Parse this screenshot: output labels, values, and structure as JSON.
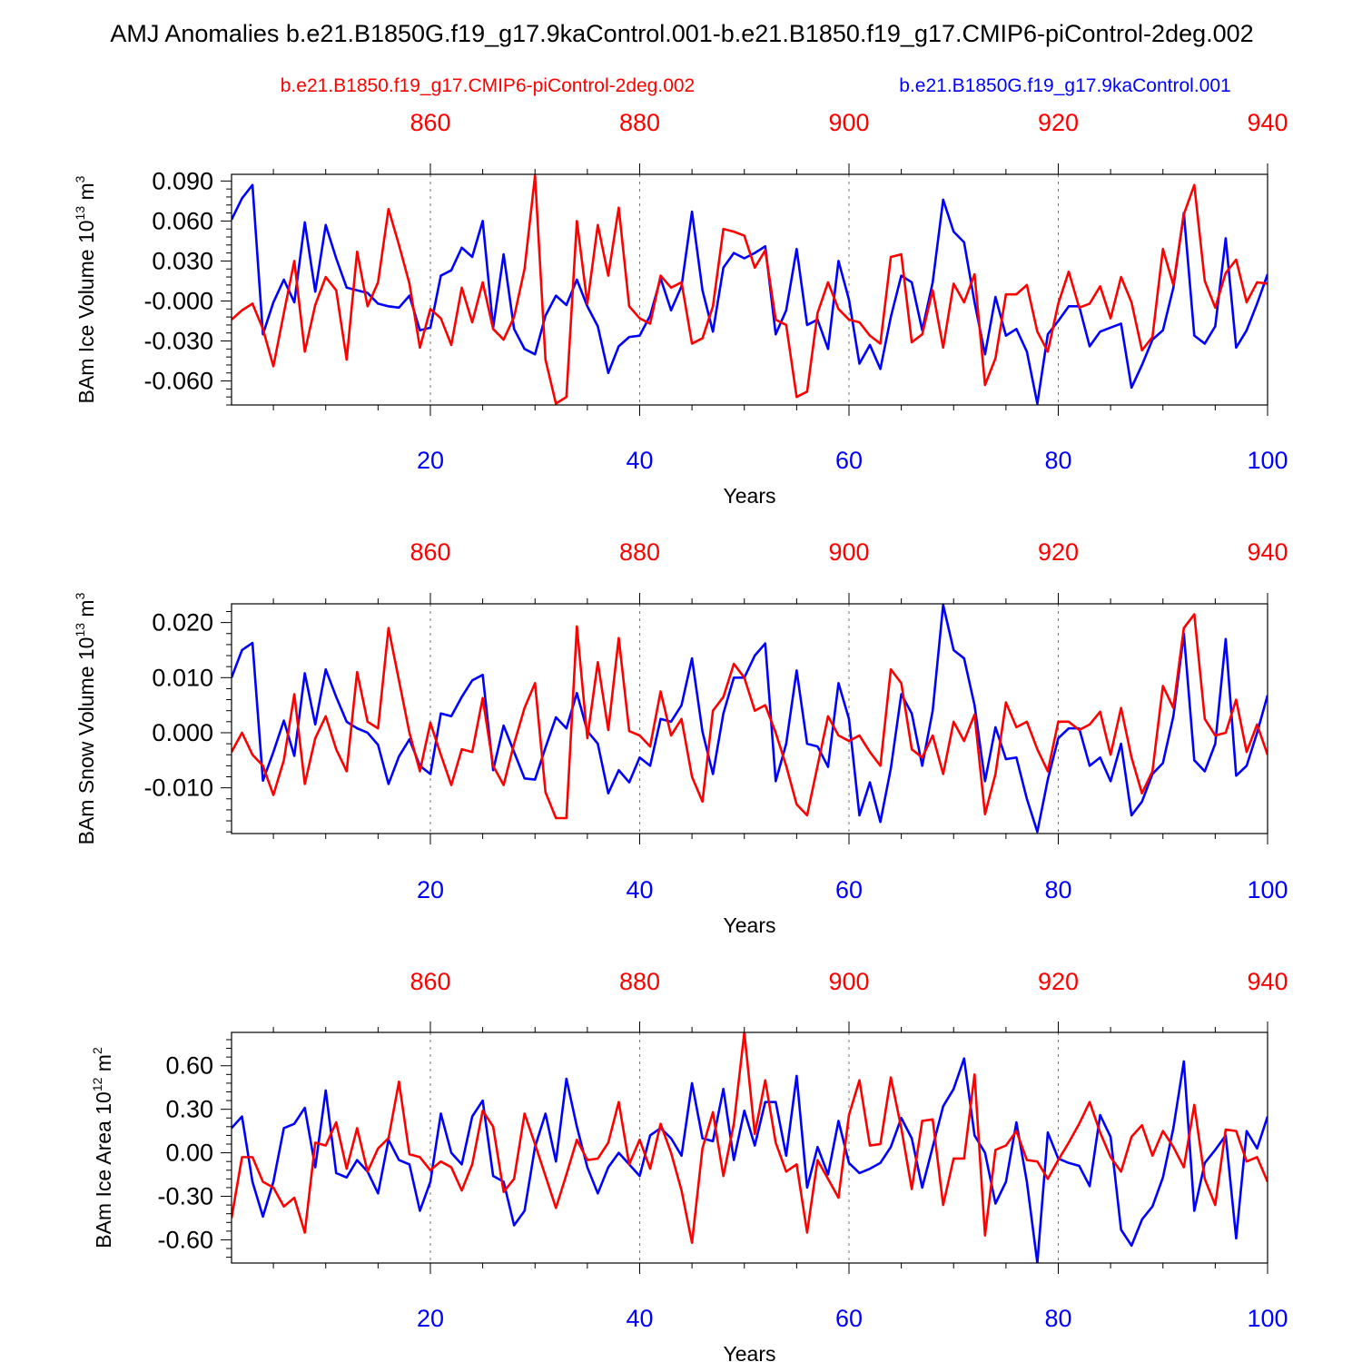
{
  "title": "AMJ Anomalies b.e21.B1850G.f19_g17.9kaControl.001-b.e21.B1850.f19_g17.CMIP6-piControl-2deg.002",
  "legend": {
    "red_label": "b.e21.B1850.f19_g17.CMIP6-piControl-2deg.002",
    "blue_label": "b.e21.B1850G.f19_g17.9kaControl.001"
  },
  "colors": {
    "red": "#ff0000",
    "blue": "#0000ff",
    "axis": "#000000",
    "grid": "#777777"
  },
  "chart_data": [
    {
      "type": "line",
      "ylabel": "BAm Ice Volume 10",
      "ylabel_exp": "13",
      "ylabel_unit": " m",
      "ylabel_unit_exp": "3",
      "xlabel": "Years",
      "xlim": [
        1,
        100
      ],
      "ylim": [
        -0.078,
        0.095
      ],
      "yticks": [
        0.09,
        0.06,
        0.03,
        0.0,
        -0.03,
        -0.06
      ],
      "ytick_labels": [
        "0.090",
        "0.060",
        "0.030",
        "-0.000",
        "-0.030",
        "-0.060"
      ],
      "xticks_bottom": [
        20,
        40,
        60,
        80,
        100
      ],
      "xtick_labels_bottom": [
        "20",
        "40",
        "60",
        "80",
        "100"
      ],
      "xticks_top": [
        20,
        40,
        60,
        80,
        100
      ],
      "xtick_labels_top": [
        "860",
        "880",
        "900",
        "920",
        "940"
      ],
      "grid_x": [
        20,
        40,
        60,
        80
      ],
      "series": [
        {
          "name": "b.e21.B1850G.f19_g17.9kaControl.001",
          "color": "blue",
          "values": [
            0.061,
            0.077,
            0.087,
            -0.025,
            -0.001,
            0.016,
            -0.001,
            0.059,
            0.007,
            0.057,
            0.032,
            0.01,
            0.008,
            0.006,
            -0.002,
            -0.004,
            -0.005,
            0.004,
            -0.022,
            -0.02,
            0.019,
            0.023,
            0.04,
            0.033,
            0.06,
            -0.02,
            0.035,
            -0.021,
            -0.036,
            -0.04,
            -0.011,
            0.004,
            -0.003,
            0.016,
            -0.004,
            -0.019,
            -0.054,
            -0.034,
            -0.027,
            -0.026,
            -0.011,
            0.017,
            -0.007,
            0.011,
            0.067,
            0.008,
            -0.023,
            0.025,
            0.036,
            0.032,
            0.036,
            0.041,
            -0.025,
            -0.007,
            0.039,
            -0.018,
            -0.014,
            -0.036,
            0.03,
            0.001,
            -0.047,
            -0.033,
            -0.051,
            -0.012,
            0.019,
            0.014,
            -0.022,
            0.014,
            0.076,
            0.052,
            0.044,
            -0.001,
            -0.04,
            0.003,
            -0.026,
            -0.021,
            -0.038,
            -0.077,
            -0.025,
            -0.015,
            -0.004,
            -0.004,
            -0.034,
            -0.023,
            -0.02,
            -0.017,
            -0.065,
            -0.048,
            -0.029,
            -0.022,
            0.01,
            0.066,
            -0.026,
            -0.032,
            -0.019,
            0.047,
            -0.035,
            -0.022,
            -0.002,
            0.02
          ]
        },
        {
          "name": "b.e21.B1850.f19_g17.CMIP6-piControl-2deg.002",
          "color": "red",
          "values": [
            -0.014,
            -0.007,
            -0.002,
            -0.021,
            -0.049,
            -0.009,
            0.03,
            -0.038,
            -0.003,
            0.018,
            0.008,
            -0.044,
            0.037,
            -0.004,
            0.014,
            0.069,
            0.042,
            0.013,
            -0.035,
            -0.006,
            -0.013,
            -0.033,
            0.01,
            -0.016,
            0.014,
            -0.021,
            -0.029,
            -0.012,
            0.024,
            0.094,
            -0.044,
            -0.077,
            -0.072,
            0.06,
            -0.002,
            0.057,
            0.019,
            0.07,
            -0.004,
            -0.013,
            -0.017,
            0.019,
            0.01,
            0.014,
            -0.032,
            -0.028,
            -0.004,
            0.054,
            0.052,
            0.049,
            0.025,
            0.038,
            -0.014,
            -0.018,
            -0.072,
            -0.068,
            -0.009,
            0.014,
            -0.006,
            -0.014,
            -0.016,
            -0.026,
            -0.032,
            0.033,
            0.035,
            -0.031,
            -0.025,
            0.008,
            -0.035,
            0.013,
            -0.001,
            0.02,
            -0.063,
            -0.043,
            0.005,
            0.005,
            0.012,
            -0.023,
            -0.038,
            -0.002,
            0.022,
            -0.005,
            -0.002,
            0.011,
            -0.013,
            0.018,
            -0.001,
            -0.037,
            -0.027,
            0.039,
            0.012,
            0.065,
            0.087,
            0.015,
            -0.005,
            0.021,
            0.031,
            -0.001,
            0.014,
            0.013
          ]
        }
      ]
    },
    {
      "type": "line",
      "ylabel": "BAm Snow Volume 10",
      "ylabel_exp": "13",
      "ylabel_unit": " m",
      "ylabel_unit_exp": "3",
      "xlabel": "Years",
      "xlim": [
        1,
        100
      ],
      "ylim": [
        -0.0183,
        0.0234
      ],
      "yticks": [
        0.02,
        0.01,
        0.0,
        -0.01
      ],
      "ytick_labels": [
        "0.020",
        "0.010",
        "0.000",
        "-0.010"
      ],
      "xticks_bottom": [
        20,
        40,
        60,
        80,
        100
      ],
      "xtick_labels_bottom": [
        "20",
        "40",
        "60",
        "80",
        "100"
      ],
      "xticks_top": [
        20,
        40,
        60,
        80,
        100
      ],
      "xtick_labels_top": [
        "860",
        "880",
        "900",
        "920",
        "940"
      ],
      "grid_x": [
        20,
        40,
        60,
        80
      ],
      "series": [
        {
          "name": "b.e21.B1850G.f19_g17.9kaControl.001",
          "color": "blue",
          "values": [
            0.01,
            0.015,
            0.0163,
            -0.0087,
            -0.0035,
            0.0022,
            -0.0042,
            0.0108,
            0.0015,
            0.0115,
            0.0065,
            0.002,
            0.0008,
            0.0,
            -0.0022,
            -0.0093,
            -0.0043,
            -0.0012,
            -0.006,
            -0.0075,
            0.0035,
            0.003,
            0.0065,
            0.0095,
            0.0105,
            -0.0068,
            0.0013,
            -0.0035,
            -0.0083,
            -0.0085,
            -0.0027,
            0.0028,
            0.0008,
            0.0072,
            0.0003,
            -0.002,
            -0.011,
            -0.0068,
            -0.009,
            -0.0045,
            -0.006,
            0.0025,
            0.002,
            0.005,
            0.0135,
            0.0002,
            -0.0075,
            0.0035,
            0.01,
            0.01,
            0.014,
            0.0162,
            -0.0088,
            -0.002,
            0.0113,
            -0.002,
            -0.0025,
            -0.0062,
            0.009,
            0.0025,
            -0.015,
            -0.009,
            -0.0162,
            -0.0065,
            0.007,
            0.0035,
            -0.006,
            0.004,
            0.0232,
            0.015,
            0.0135,
            0.005,
            -0.0088,
            0.001,
            -0.0048,
            -0.0045,
            -0.012,
            -0.018,
            -0.0085,
            -0.001,
            0.0008,
            0.0008,
            -0.006,
            -0.0045,
            -0.0088,
            -0.002,
            -0.015,
            -0.0125,
            -0.0075,
            -0.0055,
            0.003,
            0.018,
            -0.005,
            -0.007,
            -0.002,
            0.017,
            -0.0078,
            -0.006,
            0.0,
            0.0068
          ]
        },
        {
          "name": "b.e21.B1850.f19_g17.CMIP6-piControl-2deg.002",
          "color": "red",
          "values": [
            -0.0035,
            0.0,
            -0.004,
            -0.006,
            -0.0113,
            -0.005,
            0.007,
            -0.0093,
            -0.001,
            0.003,
            -0.003,
            -0.007,
            0.011,
            0.002,
            0.0008,
            0.019,
            0.0095,
            0.0,
            -0.007,
            0.0018,
            -0.004,
            -0.0095,
            -0.003,
            -0.0035,
            0.0063,
            -0.006,
            -0.0095,
            -0.002,
            0.0045,
            0.009,
            -0.0108,
            -0.0155,
            -0.0155,
            0.0193,
            -0.001,
            0.0128,
            0.0005,
            0.0172,
            0.0003,
            -0.0005,
            -0.0025,
            0.0075,
            -0.0005,
            0.0025,
            -0.008,
            -0.0125,
            0.004,
            0.0065,
            0.0125,
            0.01,
            0.004,
            0.005,
            0.0,
            -0.006,
            -0.013,
            -0.015,
            -0.006,
            0.003,
            -0.0005,
            -0.0015,
            -0.0005,
            -0.0035,
            -0.006,
            0.0115,
            0.009,
            -0.003,
            -0.0045,
            -0.0005,
            -0.0075,
            0.002,
            -0.0015,
            0.0033,
            -0.0148,
            -0.0075,
            0.0055,
            0.001,
            0.002,
            -0.003,
            -0.007,
            0.002,
            0.002,
            0.0005,
            0.0015,
            0.0038,
            -0.004,
            0.0045,
            -0.0045,
            -0.011,
            -0.007,
            0.0085,
            0.0045,
            0.019,
            0.0215,
            0.0025,
            -0.0005,
            0.0,
            0.006,
            -0.0035,
            0.0015,
            -0.004
          ]
        }
      ]
    },
    {
      "type": "line",
      "ylabel": "BAm Ice Area 10",
      "ylabel_exp": "12",
      "ylabel_unit": " m",
      "ylabel_unit_exp": "2",
      "xlabel": "Years",
      "xlim": [
        1,
        100
      ],
      "ylim": [
        -0.76,
        0.83
      ],
      "yticks": [
        0.6,
        0.3,
        0.0,
        -0.3,
        -0.6
      ],
      "ytick_labels": [
        "0.60",
        "0.30",
        "0.00",
        "-0.30",
        "-0.60"
      ],
      "xticks_bottom": [
        20,
        40,
        60,
        80,
        100
      ],
      "xtick_labels_bottom": [
        "20",
        "40",
        "60",
        "80",
        "100"
      ],
      "xticks_top": [
        20,
        40,
        60,
        80,
        100
      ],
      "xtick_labels_top": [
        "860",
        "880",
        "900",
        "920",
        "940"
      ],
      "grid_x": [
        20,
        40,
        60,
        80
      ],
      "series": [
        {
          "name": "b.e21.B1850G.f19_g17.9kaControl.001",
          "color": "blue",
          "values": [
            0.17,
            0.25,
            -0.2,
            -0.44,
            -0.2,
            0.17,
            0.2,
            0.31,
            -0.1,
            0.43,
            -0.14,
            -0.17,
            -0.05,
            -0.13,
            -0.28,
            0.09,
            -0.05,
            -0.08,
            -0.4,
            -0.2,
            0.27,
            0.0,
            -0.08,
            0.25,
            0.36,
            -0.16,
            -0.2,
            -0.5,
            -0.4,
            0.04,
            0.27,
            -0.06,
            0.51,
            0.18,
            -0.1,
            -0.28,
            -0.1,
            0.0,
            -0.08,
            -0.16,
            0.12,
            0.17,
            0.1,
            -0.02,
            0.48,
            0.1,
            0.08,
            0.44,
            -0.05,
            0.29,
            0.05,
            0.35,
            0.35,
            -0.02,
            0.53,
            -0.24,
            0.04,
            -0.15,
            0.22,
            -0.07,
            -0.14,
            -0.11,
            -0.07,
            0.04,
            0.24,
            0.1,
            -0.24,
            0.04,
            0.32,
            0.44,
            0.65,
            0.12,
            0.0,
            -0.35,
            -0.2,
            0.21,
            -0.2,
            -0.76,
            0.14,
            -0.04,
            -0.07,
            -0.09,
            -0.23,
            0.26,
            0.11,
            -0.53,
            -0.64,
            -0.46,
            -0.37,
            -0.17,
            0.17,
            0.63,
            -0.4,
            -0.07,
            0.02,
            0.12,
            -0.59,
            0.15,
            0.03,
            0.25
          ]
        },
        {
          "name": "b.e21.B1850.f19_g17.CMIP6-piControl-2deg.002",
          "color": "red",
          "values": [
            -0.45,
            -0.03,
            -0.03,
            -0.2,
            -0.24,
            -0.37,
            -0.31,
            -0.55,
            0.07,
            0.05,
            0.21,
            -0.11,
            0.17,
            -0.13,
            0.03,
            0.1,
            0.49,
            -0.01,
            -0.03,
            -0.12,
            -0.06,
            -0.1,
            -0.26,
            -0.08,
            0.29,
            0.18,
            -0.27,
            -0.18,
            0.27,
            0.06,
            -0.16,
            -0.38,
            -0.15,
            0.09,
            -0.05,
            -0.04,
            0.07,
            0.35,
            -0.08,
            0.09,
            -0.11,
            0.2,
            0.0,
            -0.26,
            -0.62,
            0.03,
            0.28,
            -0.16,
            0.2,
            0.83,
            0.13,
            0.5,
            0.07,
            -0.13,
            -0.08,
            -0.55,
            -0.05,
            -0.18,
            -0.31,
            0.26,
            0.5,
            0.05,
            0.06,
            0.52,
            0.17,
            -0.25,
            0.22,
            0.23,
            -0.36,
            -0.04,
            -0.04,
            0.54,
            -0.57,
            0.02,
            0.05,
            0.15,
            -0.05,
            -0.06,
            -0.18,
            -0.05,
            0.07,
            0.2,
            0.35,
            0.14,
            -0.03,
            -0.13,
            0.11,
            0.19,
            -0.02,
            0.15,
            0.04,
            -0.1,
            0.33,
            -0.18,
            -0.36,
            0.16,
            0.15,
            -0.06,
            -0.03,
            -0.2
          ]
        }
      ]
    }
  ]
}
